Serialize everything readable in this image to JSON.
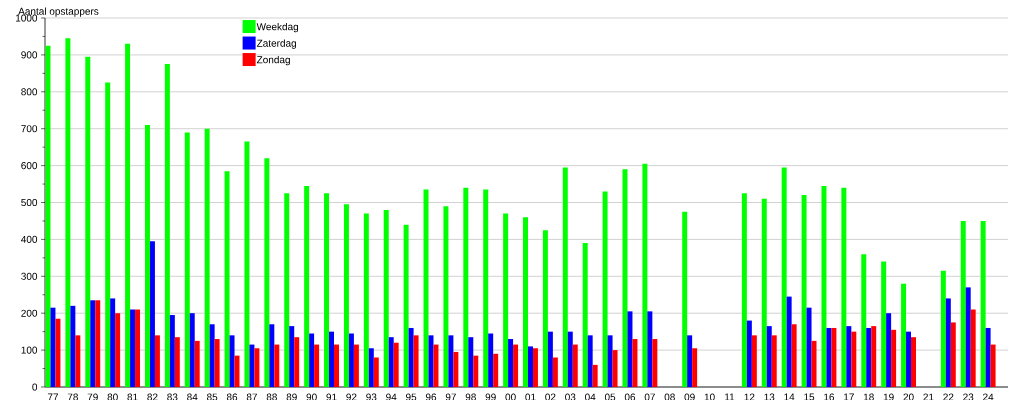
{
  "chart_data": {
    "type": "bar",
    "ylabel": "Aantal opstappers",
    "categories": [
      "77",
      "78",
      "79",
      "80",
      "81",
      "82",
      "83",
      "84",
      "85",
      "86",
      "87",
      "88",
      "89",
      "90",
      "91",
      "92",
      "93",
      "94",
      "95",
      "96",
      "97",
      "98",
      "99",
      "00",
      "01",
      "02",
      "03",
      "04",
      "05",
      "06",
      "07",
      "08",
      "09",
      "10",
      "11",
      "12",
      "13",
      "14",
      "15",
      "16",
      "17",
      "18",
      "19",
      "20",
      "21",
      "22",
      "23",
      "24"
    ],
    "series": [
      {
        "name": "Weekdag",
        "color": "#00ff00",
        "values": [
          925,
          945,
          895,
          825,
          930,
          710,
          875,
          690,
          700,
          585,
          665,
          620,
          525,
          545,
          525,
          495,
          470,
          480,
          440,
          535,
          490,
          540,
          535,
          470,
          460,
          425,
          595,
          390,
          530,
          590,
          605,
          null,
          475,
          null,
          null,
          525,
          510,
          595,
          520,
          545,
          540,
          360,
          340,
          280,
          null,
          315,
          450,
          450
        ]
      },
      {
        "name": "Zaterdag",
        "color": "#0000ff",
        "values": [
          215,
          220,
          235,
          240,
          210,
          395,
          195,
          200,
          170,
          140,
          115,
          170,
          165,
          145,
          150,
          145,
          105,
          135,
          160,
          140,
          140,
          135,
          145,
          130,
          110,
          150,
          150,
          140,
          140,
          205,
          205,
          null,
          140,
          null,
          null,
          180,
          165,
          245,
          215,
          160,
          165,
          160,
          200,
          150,
          null,
          240,
          270,
          160
        ]
      },
      {
        "name": "Zondag",
        "color": "#ff0000",
        "values": [
          185,
          140,
          235,
          200,
          210,
          140,
          135,
          125,
          130,
          85,
          105,
          115,
          135,
          115,
          115,
          115,
          80,
          120,
          140,
          115,
          95,
          85,
          90,
          115,
          105,
          80,
          115,
          60,
          100,
          130,
          130,
          null,
          105,
          null,
          null,
          140,
          140,
          170,
          125,
          160,
          150,
          165,
          155,
          135,
          null,
          175,
          210,
          115
        ]
      }
    ],
    "ylim": [
      0,
      1000
    ],
    "yticks": [
      0,
      {
        "value": 50,
        "label": null
      },
      100,
      {
        "value": 150,
        "label": null
      },
      200,
      {
        "value": 250,
        "label": null
      },
      300,
      {
        "value": 350,
        "label": null
      },
      400,
      {
        "value": 450,
        "label": null
      },
      500,
      {
        "value": 550,
        "label": null
      },
      600,
      {
        "value": 650,
        "label": null
      },
      700,
      {
        "value": 750,
        "label": null
      },
      800,
      {
        "value": 850,
        "label": null
      },
      900,
      {
        "value": 950,
        "label": null
      },
      1000
    ],
    "grid": "y",
    "legend": "top left"
  }
}
